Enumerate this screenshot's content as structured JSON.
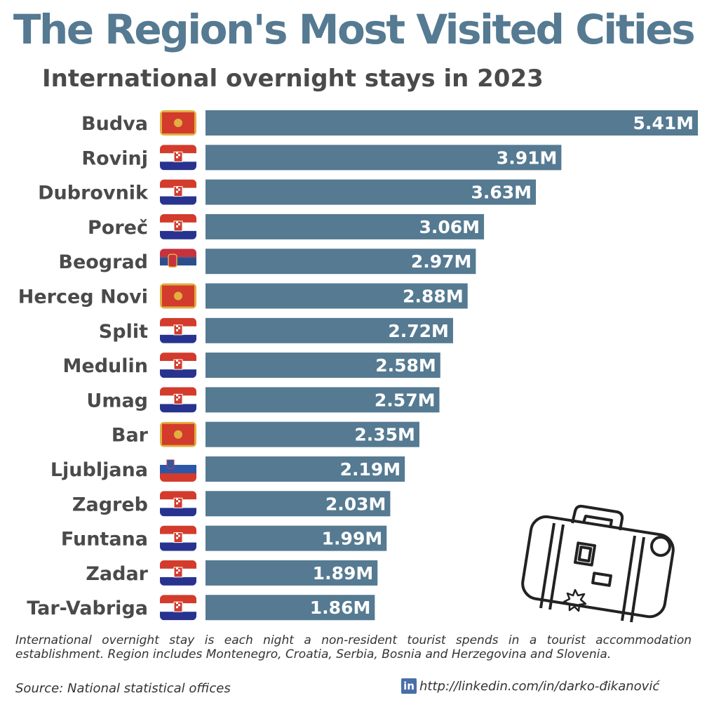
{
  "header": {
    "title": "The Region's Most Visited Cities",
    "subtitle": "International overnight stays in 2023"
  },
  "colors": {
    "title": "#557a92",
    "bar": "#557a92",
    "text": "#4a4a4a"
  },
  "chart_data": {
    "type": "bar",
    "orientation": "horizontal",
    "title": "The Region's Most Visited Cities",
    "subtitle": "International overnight stays in 2023",
    "unit": "M",
    "categories": [
      "Budva",
      "Rovinj",
      "Dubrovnik",
      "Poreč",
      "Beograd",
      "Herceg Novi",
      "Split",
      "Medulin",
      "Umag",
      "Bar",
      "Ljubljana",
      "Zagreb",
      "Funtana",
      "Zadar",
      "Tar-Vabriga"
    ],
    "values": [
      5.41,
      3.91,
      3.63,
      3.06,
      2.97,
      2.88,
      2.72,
      2.58,
      2.57,
      2.35,
      2.19,
      2.03,
      1.99,
      1.89,
      1.86
    ],
    "value_labels": [
      "5.41M",
      "3.91M",
      "3.63M",
      "3.06M",
      "2.97M",
      "2.88M",
      "2.72M",
      "2.58M",
      "2.57M",
      "2.35M",
      "2.19M",
      "2.03M",
      "1.99M",
      "1.89M",
      "1.86M"
    ],
    "flags": [
      "montenegro-flag-icon",
      "croatia-flag-icon",
      "croatia-flag-icon",
      "croatia-flag-icon",
      "serbia-flag-icon",
      "montenegro-flag-icon",
      "croatia-flag-icon",
      "croatia-flag-icon",
      "croatia-flag-icon",
      "montenegro-flag-icon",
      "slovenia-flag-icon",
      "croatia-flag-icon",
      "croatia-flag-icon",
      "croatia-flag-icon",
      "croatia-flag-icon"
    ],
    "xlim": [
      0,
      5.41
    ],
    "grid": false,
    "legend": "none"
  },
  "footer": {
    "note": "International overnight stay is each night a non-resident tourist spends in a tourist accommodation establishment. Region includes Montenegro, Croatia, Serbia, Bosnia and Herzegovina and Slovenia.",
    "source": "Source: National statistical offices",
    "linkedin_icon": "in",
    "link": "http://linkedin.com/in/darko-đikanović"
  },
  "decoration": {
    "icon": "suitcase-icon"
  }
}
